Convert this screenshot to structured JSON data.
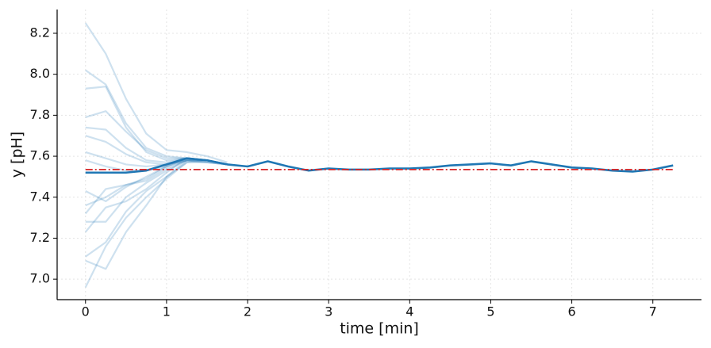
{
  "chart_data": {
    "type": "line",
    "xlabel": "time [min]",
    "ylabel": "y [pH]",
    "x": [
      0,
      0.25,
      0.5,
      0.75,
      1,
      1.25,
      1.5,
      1.75,
      2,
      2.25,
      2.5,
      2.75,
      3,
      3.25,
      3.5,
      3.75,
      4,
      4.25,
      4.5,
      4.75,
      5,
      5.25,
      5.5,
      5.75,
      6,
      6.25,
      6.5,
      6.75,
      7,
      7.25
    ],
    "xlim": [
      -0.35,
      7.6
    ],
    "xticks": [
      0,
      1,
      2,
      3,
      4,
      5,
      6,
      7
    ],
    "ylim": [
      6.9,
      8.316
    ],
    "yticks": [
      {
        "value": 7.0,
        "label": "7.0"
      },
      {
        "value": 7.2,
        "label": "7.2"
      },
      {
        "value": 7.4,
        "label": "7.4"
      },
      {
        "value": 7.6,
        "label": "7.6"
      },
      {
        "value": 7.8,
        "label": "7.8"
      },
      {
        "value": 8.0,
        "label": "8.0"
      },
      {
        "value": 8.2,
        "label": "8.2"
      }
    ],
    "grid": true,
    "reference": {
      "value": 7.535,
      "color": "#d62728",
      "style": "dashdot"
    },
    "series": [
      {
        "color": "#1f77b4",
        "alpha": 1,
        "values": [
          7.52,
          7.52,
          7.52,
          7.53,
          7.56,
          7.59,
          7.58,
          7.56,
          7.55,
          7.575,
          7.55,
          7.53,
          7.54,
          7.535,
          7.535,
          7.54,
          7.54,
          7.545,
          7.555,
          7.56,
          7.565,
          7.555,
          7.575,
          7.56,
          7.545,
          7.54,
          7.53,
          7.525,
          7.535,
          7.555
        ]
      },
      {
        "color": "#1f77b4",
        "alpha": 0.22,
        "x": [
          0,
          0.25,
          0.5,
          0.75,
          1,
          1.25,
          1.5,
          1.75
        ],
        "values": [
          8.25,
          8.1,
          7.88,
          7.71,
          7.63,
          7.62,
          7.6,
          7.57
        ]
      },
      {
        "color": "#1f77b4",
        "alpha": 0.22,
        "x": [
          0,
          0.25,
          0.5,
          0.75,
          1,
          1.25,
          1.5,
          1.75
        ],
        "values": [
          8.02,
          7.95,
          7.76,
          7.64,
          7.6,
          7.59,
          7.58,
          7.56
        ]
      },
      {
        "color": "#1f77b4",
        "alpha": 0.22,
        "x": [
          0,
          0.25,
          0.5,
          0.75,
          1,
          1.25,
          1.5,
          1.75
        ],
        "values": [
          7.93,
          7.94,
          7.74,
          7.62,
          7.58,
          7.59,
          7.58,
          7.56
        ]
      },
      {
        "color": "#1f77b4",
        "alpha": 0.22,
        "x": [
          0,
          0.25,
          0.5,
          0.75,
          1,
          1.25,
          1.5,
          1.75
        ],
        "values": [
          7.79,
          7.82,
          7.72,
          7.63,
          7.59,
          7.59,
          7.58,
          7.56
        ]
      },
      {
        "color": "#1f77b4",
        "alpha": 0.22,
        "x": [
          0,
          0.25,
          0.5,
          0.75,
          1,
          1.25,
          1.5,
          1.75
        ],
        "values": [
          7.74,
          7.73,
          7.64,
          7.58,
          7.57,
          7.59,
          7.58,
          7.56
        ]
      },
      {
        "color": "#1f77b4",
        "alpha": 0.22,
        "x": [
          0,
          0.25,
          0.5,
          0.75,
          1,
          1.25,
          1.5,
          1.75
        ],
        "values": [
          7.7,
          7.67,
          7.61,
          7.57,
          7.56,
          7.58,
          7.57,
          7.56
        ]
      },
      {
        "color": "#1f77b4",
        "alpha": 0.22,
        "x": [
          0,
          0.25,
          0.5,
          0.75,
          1,
          1.25,
          1.5,
          1.75
        ],
        "values": [
          7.62,
          7.59,
          7.56,
          7.55,
          7.56,
          7.58,
          7.58,
          7.56
        ]
      },
      {
        "color": "#1f77b4",
        "alpha": 0.22,
        "x": [
          0,
          0.25,
          0.5,
          0.75,
          1,
          1.25,
          1.5,
          1.75
        ],
        "values": [
          7.58,
          7.55,
          7.53,
          7.53,
          7.55,
          7.58,
          7.58,
          7.56
        ]
      },
      {
        "color": "#1f77b4",
        "alpha": 0.22,
        "x": [
          0,
          0.25,
          0.5,
          0.75,
          1,
          1.25,
          1.5,
          1.75
        ],
        "values": [
          7.43,
          7.38,
          7.45,
          7.5,
          7.55,
          7.59,
          7.58,
          7.56
        ]
      },
      {
        "color": "#1f77b4",
        "alpha": 0.22,
        "x": [
          0,
          0.25,
          0.5,
          0.75,
          1,
          1.25,
          1.5,
          1.75
        ],
        "values": [
          7.36,
          7.4,
          7.46,
          7.49,
          7.55,
          7.59,
          7.58,
          7.56
        ]
      },
      {
        "color": "#1f77b4",
        "alpha": 0.22,
        "x": [
          0,
          0.25,
          0.5,
          0.75,
          1,
          1.25,
          1.5,
          1.75
        ],
        "values": [
          7.32,
          7.44,
          7.46,
          7.48,
          7.54,
          7.58,
          7.58,
          7.56
        ]
      },
      {
        "color": "#1f77b4",
        "alpha": 0.22,
        "x": [
          0,
          0.25,
          0.5,
          0.75,
          1,
          1.25,
          1.5,
          1.75
        ],
        "values": [
          7.28,
          7.28,
          7.4,
          7.47,
          7.53,
          7.58,
          7.57,
          7.56
        ]
      },
      {
        "color": "#1f77b4",
        "alpha": 0.22,
        "x": [
          0,
          0.25,
          0.5,
          0.75,
          1,
          1.25,
          1.5,
          1.75
        ],
        "values": [
          7.23,
          7.35,
          7.38,
          7.44,
          7.52,
          7.59,
          7.58,
          7.56
        ]
      },
      {
        "color": "#1f77b4",
        "alpha": 0.22,
        "x": [
          0,
          0.25,
          0.5,
          0.75,
          1,
          1.25,
          1.5,
          1.75
        ],
        "values": [
          7.11,
          7.18,
          7.33,
          7.43,
          7.5,
          7.58,
          7.58,
          7.56
        ]
      },
      {
        "color": "#1f77b4",
        "alpha": 0.22,
        "x": [
          0,
          0.25,
          0.5,
          0.75,
          1,
          1.25,
          1.5,
          1.75
        ],
        "values": [
          7.09,
          7.05,
          7.23,
          7.36,
          7.5,
          7.57,
          7.58,
          7.56
        ]
      },
      {
        "color": "#1f77b4",
        "alpha": 0.22,
        "x": [
          0,
          0.25,
          0.5,
          0.75,
          1,
          1.25,
          1.5,
          1.75
        ],
        "values": [
          6.96,
          7.16,
          7.3,
          7.4,
          7.49,
          7.57,
          7.57,
          7.56
        ]
      }
    ]
  }
}
